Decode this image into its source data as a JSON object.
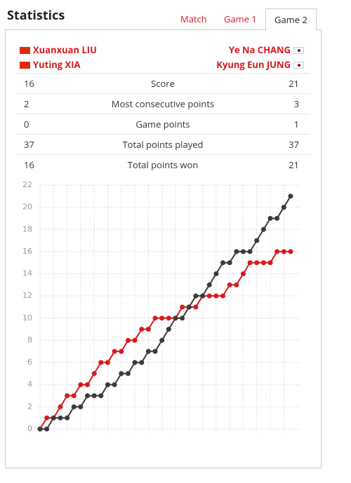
{
  "header": {
    "title": "Statistics",
    "tabs": [
      "Match",
      "Game 1",
      "Game 2"
    ]
  },
  "players": {
    "left": [
      "Xuanxuan LIU",
      "Yuting XIA"
    ],
    "right": [
      "Ye Na CHANG",
      "Kyung Eun JUNG"
    ]
  },
  "table": {
    "rows": [
      [
        16,
        "Score",
        21
      ],
      [
        2,
        "Most consecutive points",
        3
      ],
      [
        0,
        "Game points",
        1
      ],
      [
        37,
        "Total points played",
        37
      ],
      [
        16,
        "Total points won",
        21
      ]
    ]
  },
  "chart_data": {
    "type": "line",
    "x": [
      0,
      1,
      2,
      3,
      4,
      5,
      6,
      7,
      8,
      9,
      10,
      11,
      12,
      13,
      14,
      15,
      16,
      17,
      18,
      19,
      20,
      21,
      22,
      23,
      24,
      25,
      26,
      27,
      28,
      29,
      30,
      31,
      32,
      33,
      34,
      35,
      36,
      37
    ],
    "series": [
      {
        "color": "#d7191f",
        "values": [
          0,
          1,
          1,
          2,
          3,
          3,
          4,
          4,
          5,
          6,
          6,
          7,
          7,
          8,
          8,
          9,
          9,
          10,
          10,
          10,
          10,
          11,
          11,
          11,
          12,
          12,
          12,
          12,
          13,
          13,
          14,
          15,
          15,
          15,
          15,
          16,
          16,
          16
        ]
      },
      {
        "color": "#3a3a3a",
        "values": [
          0,
          0,
          1,
          1,
          1,
          2,
          2,
          3,
          3,
          3,
          4,
          4,
          5,
          5,
          6,
          6,
          7,
          7,
          8,
          9,
          10,
          10,
          11,
          12,
          12,
          13,
          14,
          15,
          15,
          16,
          16,
          16,
          17,
          18,
          19,
          19,
          20,
          21
        ]
      }
    ],
    "xlim": [
      0,
      37
    ],
    "ylim": [
      0,
      22
    ],
    "yticks": [
      0,
      2,
      4,
      6,
      8,
      10,
      12,
      14,
      16,
      18,
      20,
      22
    ],
    "grid": true
  }
}
